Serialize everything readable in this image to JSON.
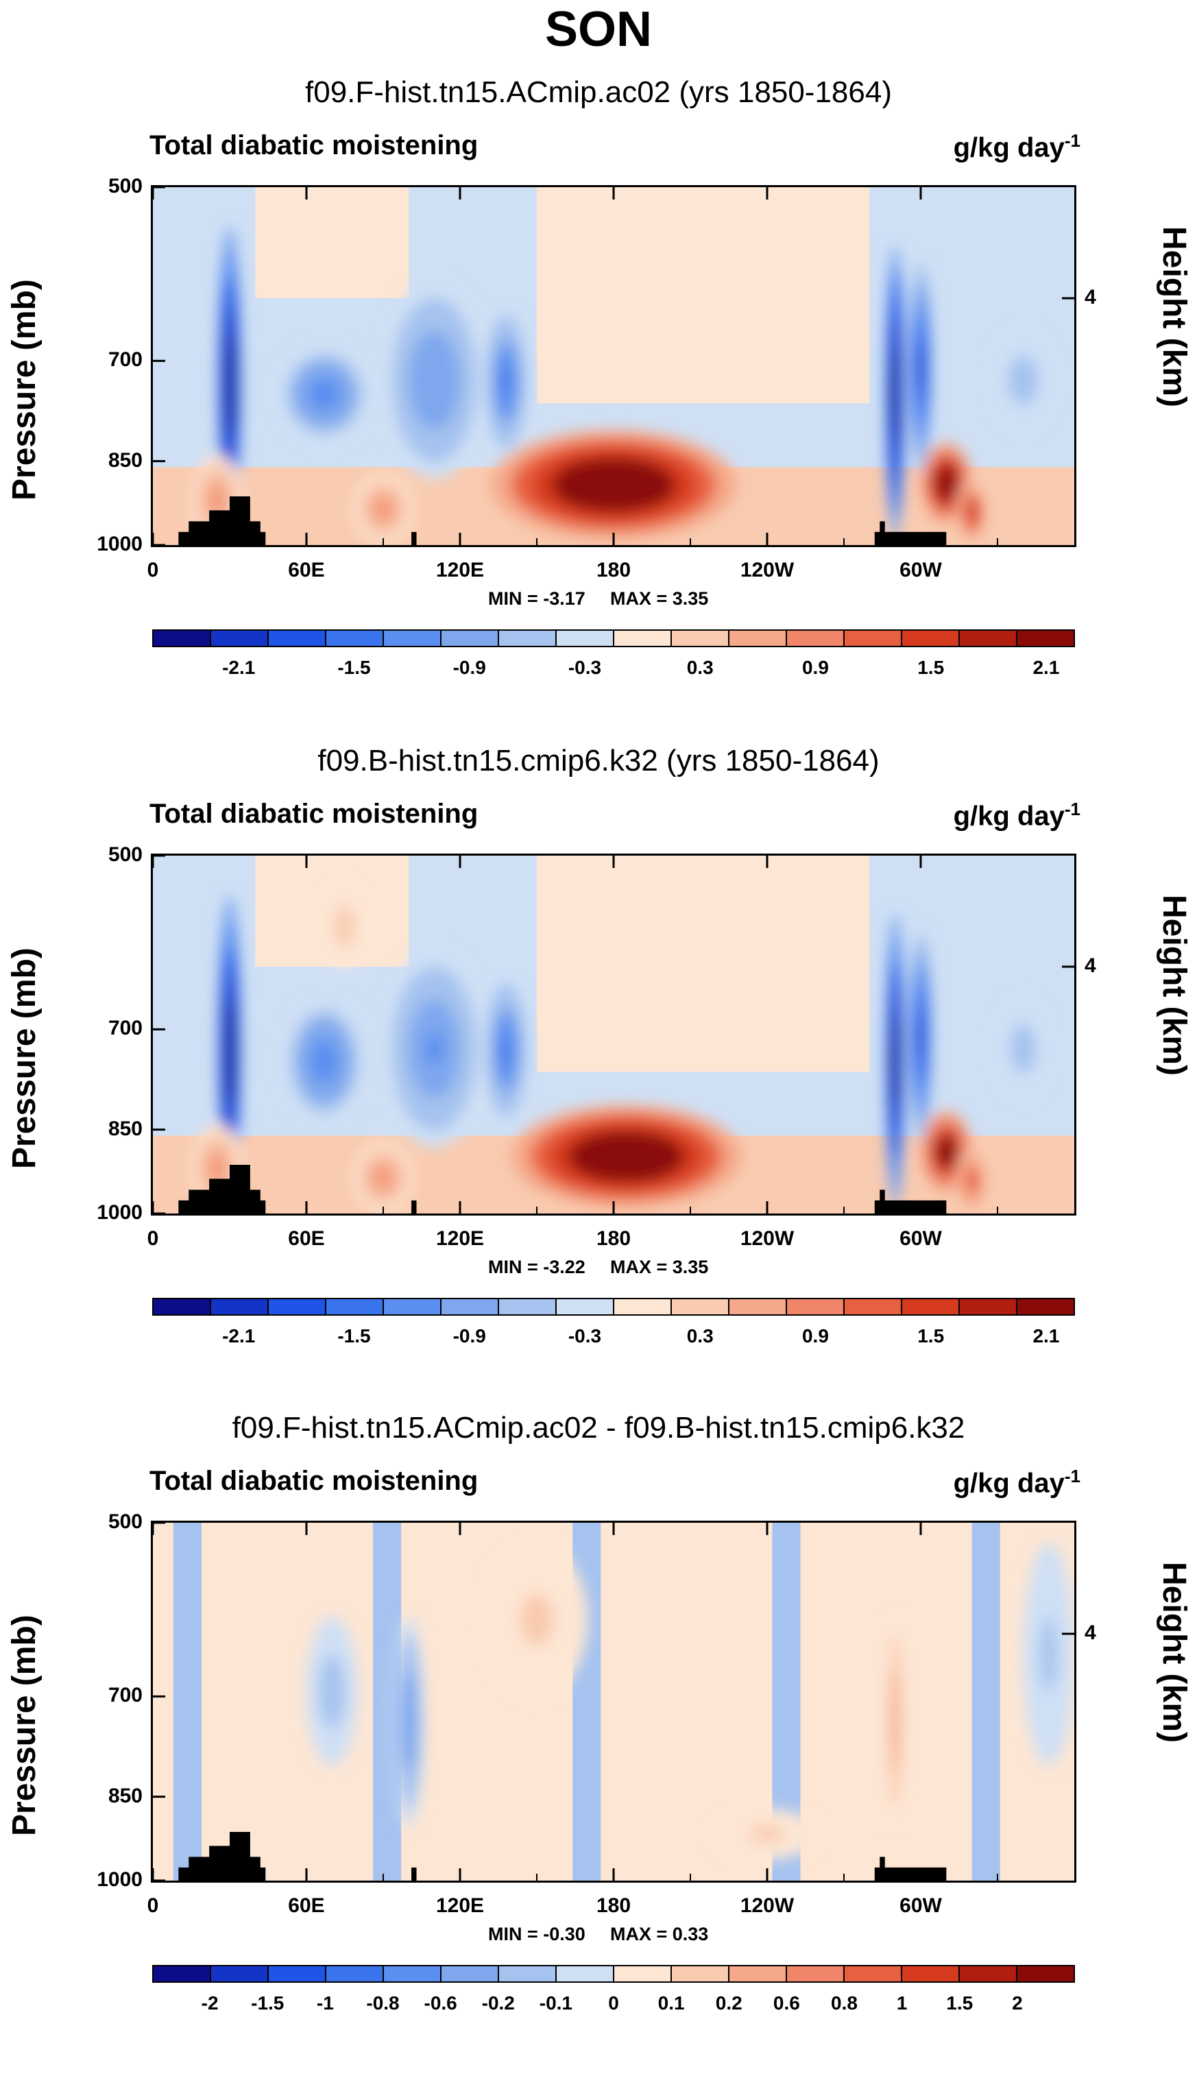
{
  "figure_title": "SON",
  "chart_data": [
    {
      "type": "heatmap",
      "title": "f09.F-hist.tn15.ACmip.ac02 (yrs 1850-1864)",
      "variable": "Total diabatic moistening",
      "units": "g/kg day",
      "units_exp": "-1",
      "ylabel": "Pressure (mb)",
      "ylabel_right": "Height (km)",
      "yticks": [
        "500",
        "700",
        "850",
        "1000"
      ],
      "yticks_right": [
        "4"
      ],
      "xticks": [
        "0",
        "60E",
        "120E",
        "180",
        "120W",
        "60W"
      ],
      "ylim": [
        1000,
        500
      ],
      "xlim": [
        0,
        360
      ],
      "min_label": "MIN =  -3.17",
      "max_label": "MAX =   3.35",
      "min": -3.17,
      "max": 3.35,
      "colorbar_labels": [
        "-2.1",
        "-1.5",
        "-0.9",
        "-0.3",
        "0.3",
        "0.9",
        "1.5",
        "2.1"
      ],
      "colorbar_levels": [
        -2.4,
        -2.1,
        -1.8,
        -1.5,
        -1.2,
        -0.9,
        -0.6,
        -0.3,
        0,
        0.3,
        0.6,
        0.9,
        1.2,
        1.5,
        1.8,
        2.1,
        2.4
      ],
      "features": [
        {
          "lon": 180,
          "p_top": 800,
          "p_bottom": 990,
          "lon_halfwidth": 48,
          "value": 3.2
        },
        {
          "lon": 30,
          "p_top": 540,
          "p_bottom": 990,
          "lon_halfwidth": 5,
          "value": -2.8
        },
        {
          "lon": 25,
          "p_top": 840,
          "p_bottom": 1000,
          "lon_halfwidth": 10,
          "value": 1.0
        },
        {
          "lon": 67,
          "p_top": 680,
          "p_bottom": 820,
          "lon_halfwidth": 18,
          "value": -1.2
        },
        {
          "lon": 110,
          "p_top": 600,
          "p_bottom": 880,
          "lon_halfwidth": 20,
          "value": -0.9
        },
        {
          "lon": 138,
          "p_top": 640,
          "p_bottom": 830,
          "lon_halfwidth": 8,
          "value": -1.3
        },
        {
          "lon": 90,
          "p_top": 870,
          "p_bottom": 1000,
          "lon_halfwidth": 12,
          "value": 0.9
        },
        {
          "lon": 290,
          "p_top": 560,
          "p_bottom": 990,
          "lon_halfwidth": 4,
          "value": -3.0
        },
        {
          "lon": 300,
          "p_top": 580,
          "p_bottom": 870,
          "lon_halfwidth": 5,
          "value": -2.0
        },
        {
          "lon": 310,
          "p_top": 820,
          "p_bottom": 960,
          "lon_halfwidth": 10,
          "value": 2.8
        },
        {
          "lon": 320,
          "p_top": 880,
          "p_bottom": 1000,
          "lon_halfwidth": 6,
          "value": 1.8
        },
        {
          "lon": 340,
          "p_top": 660,
          "p_bottom": 800,
          "lon_halfwidth": 12,
          "value": -0.5
        }
      ]
    },
    {
      "type": "heatmap",
      "title": "f09.B-hist.tn15.cmip6.k32 (yrs 1850-1864)",
      "variable": "Total diabatic moistening",
      "units": "g/kg day",
      "units_exp": "-1",
      "ylabel": "Pressure (mb)",
      "ylabel_right": "Height (km)",
      "yticks": [
        "500",
        "700",
        "850",
        "1000"
      ],
      "yticks_right": [
        "4"
      ],
      "xticks": [
        "0",
        "60E",
        "120E",
        "180",
        "120W",
        "60W"
      ],
      "ylim": [
        1000,
        500
      ],
      "xlim": [
        0,
        360
      ],
      "min_label": "MIN =  -3.22",
      "max_label": "MAX =   3.35",
      "min": -3.22,
      "max": 3.35,
      "colorbar_labels": [
        "-2.1",
        "-1.5",
        "-0.9",
        "-0.3",
        "0.3",
        "0.9",
        "1.5",
        "2.1"
      ],
      "colorbar_levels": [
        -2.4,
        -2.1,
        -1.8,
        -1.5,
        -1.2,
        -0.9,
        -0.6,
        -0.3,
        0,
        0.3,
        0.6,
        0.9,
        1.2,
        1.5,
        1.8,
        2.1,
        2.4
      ],
      "features": [
        {
          "lon": 185,
          "p_top": 810,
          "p_bottom": 990,
          "lon_halfwidth": 45,
          "value": 3.2
        },
        {
          "lon": 30,
          "p_top": 540,
          "p_bottom": 990,
          "lon_halfwidth": 5,
          "value": -2.8
        },
        {
          "lon": 25,
          "p_top": 840,
          "p_bottom": 1000,
          "lon_halfwidth": 10,
          "value": 1.0
        },
        {
          "lon": 67,
          "p_top": 660,
          "p_bottom": 840,
          "lon_halfwidth": 16,
          "value": -1.1
        },
        {
          "lon": 110,
          "p_top": 600,
          "p_bottom": 880,
          "lon_halfwidth": 20,
          "value": -1.0
        },
        {
          "lon": 138,
          "p_top": 640,
          "p_bottom": 830,
          "lon_halfwidth": 8,
          "value": -1.4
        },
        {
          "lon": 90,
          "p_top": 870,
          "p_bottom": 1000,
          "lon_halfwidth": 12,
          "value": 1.0
        },
        {
          "lon": 290,
          "p_top": 560,
          "p_bottom": 990,
          "lon_halfwidth": 4,
          "value": -2.8
        },
        {
          "lon": 300,
          "p_top": 580,
          "p_bottom": 870,
          "lon_halfwidth": 5,
          "value": -2.1
        },
        {
          "lon": 310,
          "p_top": 820,
          "p_bottom": 960,
          "lon_halfwidth": 10,
          "value": 2.6
        },
        {
          "lon": 320,
          "p_top": 880,
          "p_bottom": 1000,
          "lon_halfwidth": 6,
          "value": 1.6
        },
        {
          "lon": 340,
          "p_top": 660,
          "p_bottom": 800,
          "lon_halfwidth": 10,
          "value": -0.5
        },
        {
          "lon": 75,
          "p_top": 530,
          "p_bottom": 620,
          "lon_halfwidth": 8,
          "value": 0.5
        }
      ]
    },
    {
      "type": "heatmap",
      "title": "f09.F-hist.tn15.ACmip.ac02 - f09.B-hist.tn15.cmip6.k32",
      "variable": "Total diabatic moistening",
      "units": "g/kg day",
      "units_exp": "-1",
      "ylabel": "Pressure (mb)",
      "ylabel_right": "Height (km)",
      "yticks": [
        "500",
        "700",
        "850",
        "1000"
      ],
      "yticks_right": [
        "4"
      ],
      "xticks": [
        "0",
        "60E",
        "120E",
        "180",
        "120W",
        "60W"
      ],
      "ylim": [
        1000,
        500
      ],
      "xlim": [
        0,
        360
      ],
      "min_label": "MIN =  -0.30",
      "max_label": "MAX =   0.33",
      "min": -0.3,
      "max": 0.33,
      "colorbar_labels": [
        "-2",
        "-1.5",
        "-1",
        "-0.8",
        "-0.6",
        "-0.2",
        "-0.1",
        "0",
        "0.1",
        "0.2",
        "0.6",
        "0.8",
        "1",
        "1.5",
        "2"
      ],
      "colorbar_levels": [
        -2.5,
        -2,
        -1.5,
        -1,
        -0.8,
        -0.6,
        -0.2,
        -0.1,
        0,
        0.1,
        0.2,
        0.6,
        0.8,
        1,
        1.5,
        2,
        2.5
      ],
      "features": [
        {
          "lon": 100,
          "p_top": 600,
          "p_bottom": 900,
          "lon_halfwidth": 6,
          "value": -0.3
        },
        {
          "lon": 70,
          "p_top": 600,
          "p_bottom": 800,
          "lon_halfwidth": 10,
          "value": -0.15
        },
        {
          "lon": 290,
          "p_top": 600,
          "p_bottom": 900,
          "lon_halfwidth": 3,
          "value": 0.3
        },
        {
          "lon": 240,
          "p_top": 870,
          "p_bottom": 960,
          "lon_halfwidth": 20,
          "value": 0.12
        },
        {
          "lon": 150,
          "p_top": 520,
          "p_bottom": 700,
          "lon_halfwidth": 20,
          "value": 0.12
        },
        {
          "lon": 350,
          "p_top": 520,
          "p_bottom": 800,
          "lon_halfwidth": 10,
          "value": -0.12
        }
      ]
    }
  ]
}
